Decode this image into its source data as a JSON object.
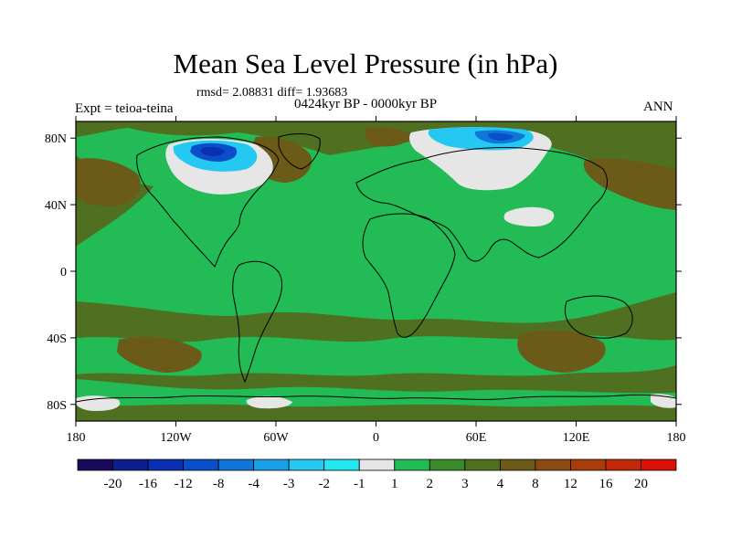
{
  "title": "Mean Sea Level Pressure (in hPa)",
  "stats": "rmsd= 2.08831  diff= 1.93683",
  "period": "0424kyr BP - 0000kyr BP",
  "experiment": "Expt = teioa-teina",
  "season": "ANN",
  "map": {
    "projection": "cylindrical equidistant",
    "lon_range": [
      -180,
      180
    ],
    "lat_range": [
      -90,
      90
    ],
    "lat_ticks": [
      {
        "value": 80,
        "label": "80N"
      },
      {
        "value": 40,
        "label": "40N"
      },
      {
        "value": 0,
        "label": "0"
      },
      {
        "value": -40,
        "label": "40S"
      },
      {
        "value": -80,
        "label": "80S"
      }
    ],
    "lon_ticks": [
      {
        "value": -180,
        "label": "180"
      },
      {
        "value": -120,
        "label": "120W"
      },
      {
        "value": -60,
        "label": "60W"
      },
      {
        "value": 0,
        "label": "0"
      },
      {
        "value": 60,
        "label": "60E"
      },
      {
        "value": 120,
        "label": "120E"
      },
      {
        "value": 180,
        "label": "180"
      }
    ]
  },
  "colorbar": {
    "colors": [
      "#1a0a5c",
      "#0d1f8c",
      "#0a2fb0",
      "#0a4fc8",
      "#1076d8",
      "#1aa0e6",
      "#25c8f0",
      "#22e6f0",
      "#e6e6e6",
      "#22bb55",
      "#3a8a2a",
      "#4f7020",
      "#6b5a18",
      "#8a4a10",
      "#a83c0a",
      "#c02808",
      "#d81005"
    ],
    "labels": [
      "-20",
      "-16",
      "-12",
      "-8",
      "-4",
      "-3",
      "-2",
      "-1",
      "1",
      "2",
      "3",
      "4",
      "8",
      "12",
      "16",
      "20"
    ]
  }
}
